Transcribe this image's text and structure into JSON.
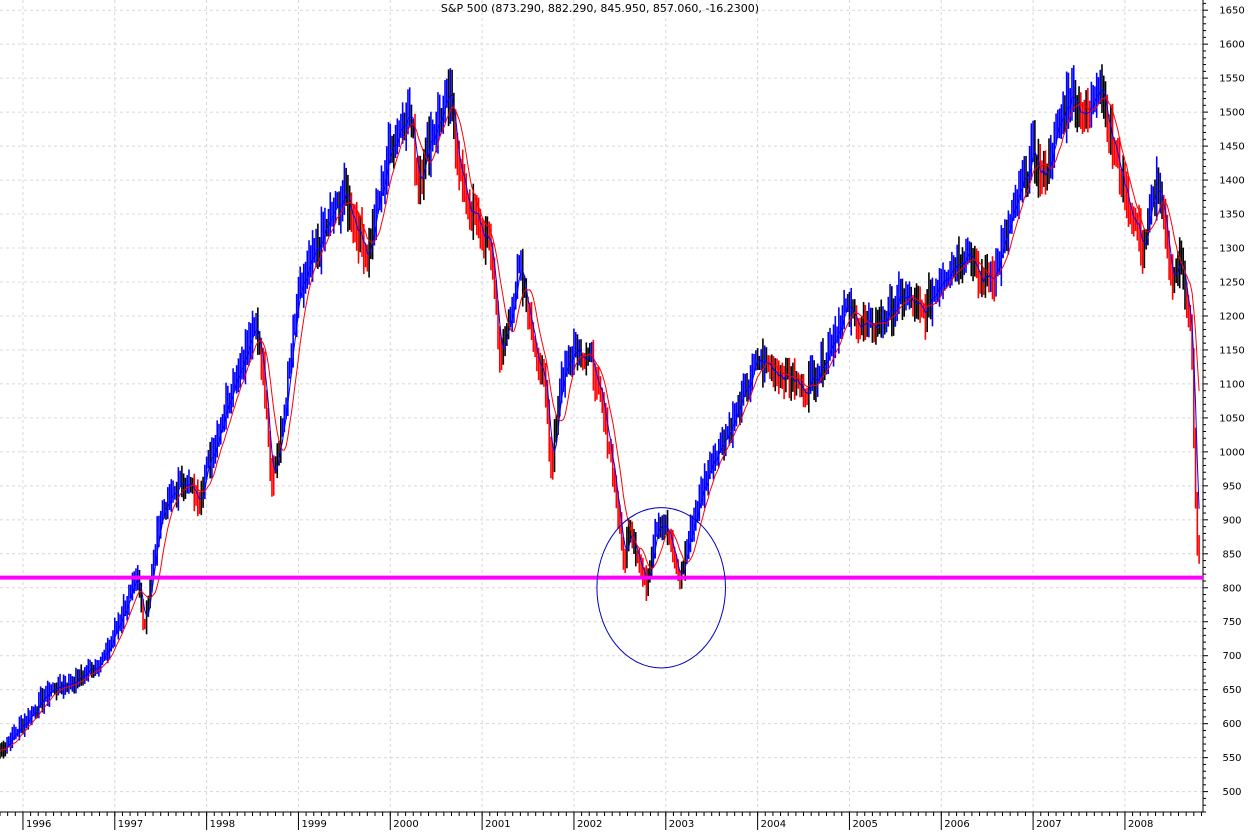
{
  "chart_data": {
    "type": "bar",
    "subtype": "price-bars-weekly",
    "title": "S&P 500 (873.290, 882.290, 845.950, 857.060, -16.2300)",
    "xlabel": "",
    "ylabel": "",
    "ylim": [
      470,
      1665
    ],
    "xlim": [
      1995.75,
      2008.85
    ],
    "x_ticks": [
      "1996",
      "1997",
      "1998",
      "1999",
      "2000",
      "2001",
      "2002",
      "2003",
      "2004",
      "2005",
      "2006",
      "2007",
      "2008"
    ],
    "y_ticks": [
      500,
      550,
      600,
      650,
      700,
      750,
      800,
      850,
      900,
      950,
      1000,
      1050,
      1100,
      1150,
      1200,
      1250,
      1300,
      1350,
      1400,
      1450,
      1500,
      1550,
      1600,
      1650
    ],
    "grid": true,
    "y_axis_side": "right",
    "price_colors": {
      "up": "#0000ff",
      "down": "#ff0000",
      "neutral": "#000000"
    },
    "price_anchors": [
      [
        1995.75,
        560
      ],
      [
        1996.0,
        600
      ],
      [
        1996.3,
        650
      ],
      [
        1996.6,
        665
      ],
      [
        1996.9,
        700
      ],
      [
        1997.1,
        770
      ],
      [
        1997.25,
        810
      ],
      [
        1997.32,
        745
      ],
      [
        1997.5,
        910
      ],
      [
        1997.75,
        960
      ],
      [
        1997.9,
        930
      ],
      [
        1998.3,
        1110
      ],
      [
        1998.55,
        1185
      ],
      [
        1998.65,
        1080
      ],
      [
        1998.7,
        960
      ],
      [
        1998.8,
        1010
      ],
      [
        1999.0,
        1230
      ],
      [
        1999.3,
        1330
      ],
      [
        1999.5,
        1380
      ],
      [
        1999.75,
        1290
      ],
      [
        2000.0,
        1450
      ],
      [
        2000.2,
        1510
      ],
      [
        2000.3,
        1400
      ],
      [
        2000.45,
        1470
      ],
      [
        2000.65,
        1520
      ],
      [
        2000.8,
        1380
      ],
      [
        2001.0,
        1320
      ],
      [
        2001.1,
        1300
      ],
      [
        2001.2,
        1130
      ],
      [
        2001.4,
        1270
      ],
      [
        2001.7,
        1080
      ],
      [
        2001.75,
        980
      ],
      [
        2001.85,
        1100
      ],
      [
        2002.0,
        1160
      ],
      [
        2002.2,
        1130
      ],
      [
        2002.4,
        1000
      ],
      [
        2002.55,
        830
      ],
      [
        2002.6,
        900
      ],
      [
        2002.78,
        800
      ],
      [
        2002.9,
        900
      ],
      [
        2003.0,
        890
      ],
      [
        2003.15,
        810
      ],
      [
        2003.3,
        900
      ],
      [
        2003.5,
        990
      ],
      [
        2003.75,
        1050
      ],
      [
        2004.0,
        1135
      ],
      [
        2004.2,
        1120
      ],
      [
        2004.35,
        1110
      ],
      [
        2004.5,
        1090
      ],
      [
        2004.7,
        1130
      ],
      [
        2004.95,
        1210
      ],
      [
        2005.2,
        1180
      ],
      [
        2005.4,
        1200
      ],
      [
        2005.6,
        1230
      ],
      [
        2005.8,
        1200
      ],
      [
        2006.0,
        1260
      ],
      [
        2006.3,
        1300
      ],
      [
        2006.4,
        1250
      ],
      [
        2006.6,
        1270
      ],
      [
        2006.9,
        1400
      ],
      [
        2007.0,
        1440
      ],
      [
        2007.1,
        1400
      ],
      [
        2007.4,
        1530
      ],
      [
        2007.6,
        1490
      ],
      [
        2007.72,
        1560
      ],
      [
        2007.85,
        1460
      ],
      [
        2008.05,
        1360
      ],
      [
        2008.2,
        1300
      ],
      [
        2008.35,
        1400
      ],
      [
        2008.5,
        1260
      ],
      [
        2008.62,
        1280
      ],
      [
        2008.72,
        1180
      ],
      [
        2008.78,
        860
      ],
      [
        2008.82,
        857
      ]
    ],
    "moving_averages": [
      {
        "color": "#0000ff",
        "weeks": 4
      },
      {
        "color": "#ff0000",
        "weeks": 10
      }
    ],
    "annotations": [
      {
        "type": "horizontal-line",
        "value": 815,
        "color": "#ff00ff"
      },
      {
        "type": "ellipse",
        "center_x": 2002.95,
        "center_y": 800,
        "radius_x_years": 0.7,
        "radius_y_points": 118,
        "color": "#0000c0"
      }
    ]
  }
}
